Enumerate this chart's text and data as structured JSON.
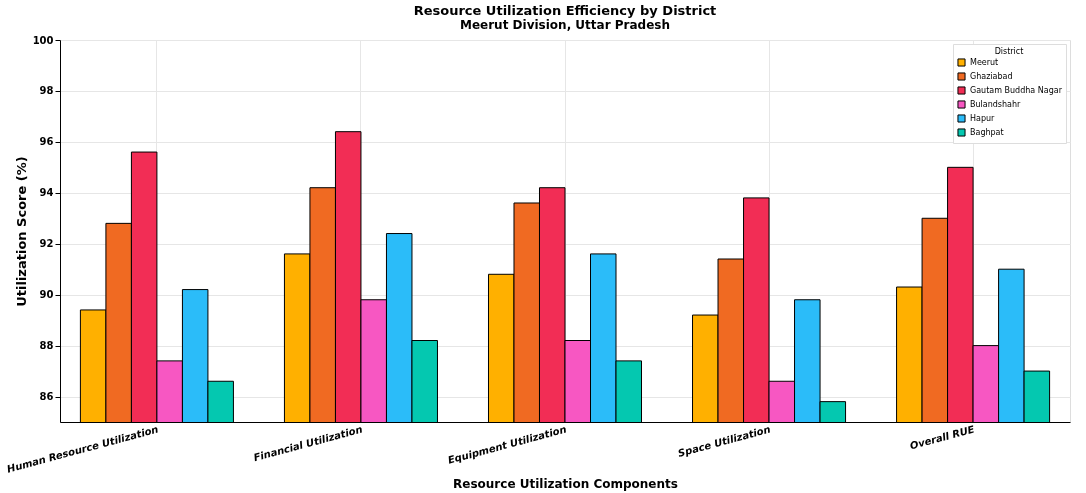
{
  "chart_data": {
    "type": "bar",
    "title": "Resource Utilization Efficiency by District",
    "subtitle": "Meerut Division, Uttar Pradesh",
    "xlabel": "Resource Utilization Components",
    "ylabel": "Utilization Score (%)",
    "legend_title": "District",
    "categories": [
      "Human Resource Utilization",
      "Financial Utilization",
      "Equipment Utilization",
      "Space Utilization",
      "Overall RUE"
    ],
    "series": [
      {
        "name": "Meerut",
        "color": "#ffb000",
        "values": [
          89.4,
          91.6,
          90.8,
          89.2,
          90.3
        ]
      },
      {
        "name": "Ghaziabad",
        "color": "#f06a22",
        "values": [
          92.8,
          94.2,
          93.6,
          91.4,
          93.0
        ]
      },
      {
        "name": "Gautam Buddha Nagar",
        "color": "#f22d55",
        "values": [
          95.6,
          96.4,
          94.2,
          93.8,
          95.0
        ]
      },
      {
        "name": "Bulandshahr",
        "color": "#f757c2",
        "values": [
          87.4,
          89.8,
          88.2,
          86.6,
          88.0
        ]
      },
      {
        "name": "Hapur",
        "color": "#2bbcf9",
        "values": [
          90.2,
          92.4,
          91.6,
          89.8,
          91.0
        ]
      },
      {
        "name": "Baghpat",
        "color": "#04c8b0",
        "values": [
          86.6,
          88.2,
          87.4,
          85.8,
          87.0
        ]
      }
    ],
    "ylim": [
      85,
      100
    ],
    "yticks": [
      86,
      88,
      90,
      92,
      94,
      96,
      98,
      100
    ],
    "grid": true,
    "legend": "top right"
  }
}
